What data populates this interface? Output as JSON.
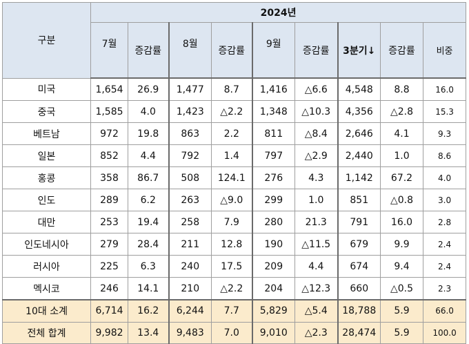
{
  "table": {
    "row_header": "구분",
    "year_label": "2024년",
    "columns": {
      "jul": "7월",
      "aug": "8월",
      "sep": "9월",
      "q3": "3분기↓",
      "change": "증감률",
      "share": "비중"
    },
    "rows": [
      {
        "name": "미국",
        "jul": "1,654",
        "jul_chg": "26.9",
        "aug": "1,477",
        "aug_chg": "8.7",
        "sep": "1,416",
        "sep_chg": "△6.6",
        "q3": "4,548",
        "q3_chg": "8.8",
        "share": "16.0"
      },
      {
        "name": "중국",
        "jul": "1,585",
        "jul_chg": "4.0",
        "aug": "1,423",
        "aug_chg": "△2.2",
        "sep": "1,348",
        "sep_chg": "△10.3",
        "q3": "4,356",
        "q3_chg": "△2.8",
        "share": "15.3"
      },
      {
        "name": "베트남",
        "jul": "972",
        "jul_chg": "19.8",
        "aug": "863",
        "aug_chg": "2.2",
        "sep": "811",
        "sep_chg": "△8.4",
        "q3": "2,646",
        "q3_chg": "4.1",
        "share": "9.3"
      },
      {
        "name": "일본",
        "jul": "852",
        "jul_chg": "4.4",
        "aug": "792",
        "aug_chg": "1.4",
        "sep": "797",
        "sep_chg": "△2.9",
        "q3": "2,440",
        "q3_chg": "1.0",
        "share": "8.6"
      },
      {
        "name": "홍콩",
        "jul": "358",
        "jul_chg": "86.7",
        "aug": "508",
        "aug_chg": "124.1",
        "sep": "276",
        "sep_chg": "4.3",
        "q3": "1,142",
        "q3_chg": "67.2",
        "share": "4.0"
      },
      {
        "name": "인도",
        "jul": "289",
        "jul_chg": "6.2",
        "aug": "263",
        "aug_chg": "△9.0",
        "sep": "299",
        "sep_chg": "1.0",
        "q3": "851",
        "q3_chg": "△0.8",
        "share": "3.0"
      },
      {
        "name": "대만",
        "jul": "253",
        "jul_chg": "19.4",
        "aug": "258",
        "aug_chg": "7.9",
        "sep": "280",
        "sep_chg": "21.3",
        "q3": "791",
        "q3_chg": "16.0",
        "share": "2.8"
      },
      {
        "name": "인도네시아",
        "jul": "279",
        "jul_chg": "28.4",
        "aug": "211",
        "aug_chg": "12.8",
        "sep": "190",
        "sep_chg": "△11.5",
        "q3": "679",
        "q3_chg": "9.9",
        "share": "2.4"
      },
      {
        "name": "러시아",
        "jul": "225",
        "jul_chg": "6.3",
        "aug": "240",
        "aug_chg": "17.5",
        "sep": "209",
        "sep_chg": "4.4",
        "q3": "674",
        "q3_chg": "9.4",
        "share": "2.4"
      },
      {
        "name": "멕시코",
        "jul": "246",
        "jul_chg": "14.1",
        "aug": "210",
        "aug_chg": "△2.2",
        "sep": "204",
        "sep_chg": "△12.3",
        "q3": "660",
        "q3_chg": "△0.5",
        "share": "2.3"
      }
    ],
    "totals": [
      {
        "name": "10대 소계",
        "jul": "6,714",
        "jul_chg": "16.2",
        "aug": "6,244",
        "aug_chg": "7.7",
        "sep": "5,829",
        "sep_chg": "△5.4",
        "q3": "18,788",
        "q3_chg": "5.9",
        "share": "66.0"
      },
      {
        "name": "전체 합계",
        "jul": "9,982",
        "jul_chg": "13.4",
        "aug": "9,483",
        "aug_chg": "7.0",
        "sep": "9,010",
        "sep_chg": "△2.3",
        "q3": "28,474",
        "q3_chg": "5.9",
        "share": "100.0"
      }
    ]
  },
  "colors": {
    "header_bg": "#dde6f1",
    "total_bg": "#fbebcc",
    "border": "#9e9e9e"
  }
}
